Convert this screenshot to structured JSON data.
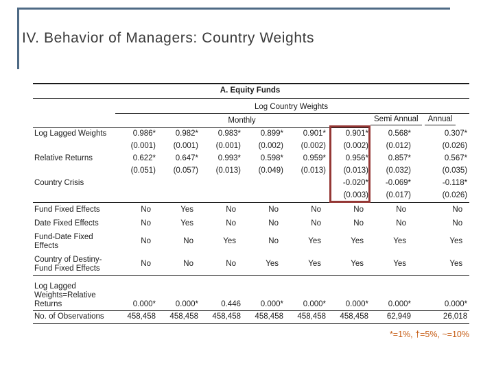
{
  "slide": {
    "title": "IV. Behavior of Managers: Country Weights",
    "footnote": "*=1%, †=5%, ~=10%"
  },
  "theme": {
    "background": "#FFFFFF",
    "accent_line": "#4E6A85",
    "rule": "#1a1a1a",
    "text": "#1a1a1a",
    "footnote_color": "#C55A11",
    "highlight_box_color": "#943634"
  },
  "table": {
    "panel_title": "A. Equity Funds",
    "group_header": "Log Country Weights",
    "col_groups": [
      {
        "label": "Monthly",
        "span": 6
      },
      {
        "label": "Semi Annual",
        "span": 1
      },
      {
        "label": "Annual",
        "span": 1
      }
    ],
    "highlight": {
      "column_index": 5,
      "note": "sixth Monthly column outlined in dark red"
    },
    "sections": [
      {
        "name": "coefficients",
        "rows": [
          {
            "label": "Log Lagged Weights",
            "values": [
              "0.986*",
              "0.982*",
              "0.983*",
              "0.899*",
              "0.901*",
              "0.901*",
              "0.568*",
              "0.307*"
            ]
          },
          {
            "label": "",
            "values": [
              "(0.001)",
              "(0.001)",
              "(0.001)",
              "(0.002)",
              "(0.002)",
              "(0.002)",
              "(0.012)",
              "(0.026)"
            ]
          },
          {
            "label": "Relative Returns",
            "values": [
              "0.622*",
              "0.647*",
              "0.993*",
              "0.598*",
              "0.959*",
              "0.956*",
              "0.857*",
              "0.567*"
            ]
          },
          {
            "label": "",
            "values": [
              "(0.051)",
              "(0.057)",
              "(0.013)",
              "(0.049)",
              "(0.013)",
              "(0.013)",
              "(0.032)",
              "(0.035)"
            ]
          },
          {
            "label": "Country Crisis",
            "values": [
              "",
              "",
              "",
              "",
              "",
              "-0.020*",
              "-0.069*",
              "-0.118*"
            ]
          },
          {
            "label": "",
            "values": [
              "",
              "",
              "",
              "",
              "",
              "(0.003)",
              "(0.017)",
              "(0.026)"
            ]
          }
        ]
      },
      {
        "name": "fixed-effects",
        "rows": [
          {
            "label": "Fund Fixed Effects",
            "values": [
              "No",
              "Yes",
              "No",
              "No",
              "No",
              "No",
              "No",
              "No"
            ],
            "align": "fe"
          },
          {
            "label": "Date Fixed Effects",
            "values": [
              "No",
              "Yes",
              "No",
              "No",
              "No",
              "No",
              "No",
              "No"
            ],
            "align": "fe"
          },
          {
            "label": "Fund-Date Fixed\nEffects",
            "values": [
              "No",
              "No",
              "Yes",
              "No",
              "Yes",
              "Yes",
              "Yes",
              "Yes"
            ],
            "align": "fe",
            "valign": "middle"
          },
          {
            "label": "Country of Destiny-\nFund Fixed Effects",
            "values": [
              "No",
              "No",
              "No",
              "Yes",
              "Yes",
              "Yes",
              "Yes",
              "Yes"
            ],
            "align": "fe",
            "valign": "middle"
          }
        ]
      },
      {
        "name": "tests",
        "rows": [
          {
            "label": "Log Lagged\nWeights=Relative\nReturns",
            "values": [
              "0.000*",
              "0.000*",
              "0.446",
              "0.000*",
              "0.000*",
              "0.000*",
              "0.000*",
              "0.000*"
            ]
          }
        ]
      },
      {
        "name": "observations",
        "rows": [
          {
            "label": "No. of Observations",
            "values": [
              "458,458",
              "458,458",
              "458,458",
              "458,458",
              "458,458",
              "458,458",
              "62,949",
              "26,018"
            ]
          }
        ]
      }
    ]
  }
}
